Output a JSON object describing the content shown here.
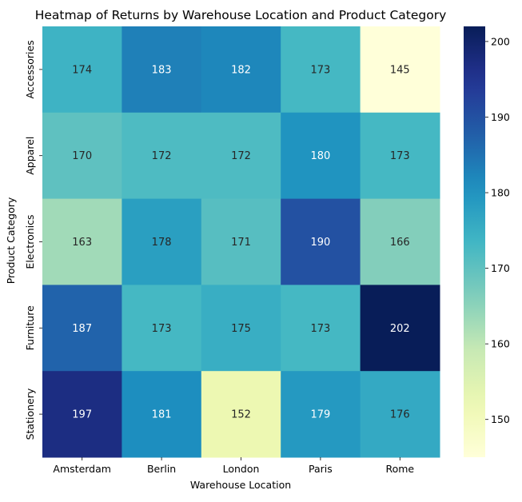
{
  "chart_data": {
    "type": "heatmap",
    "title": "Heatmap of Returns by Warehouse Location and Product Category",
    "xlabel": "Warehouse Location",
    "ylabel": "Product Category",
    "x_categories": [
      "Amsterdam",
      "Berlin",
      "London",
      "Paris",
      "Rome"
    ],
    "y_categories": [
      "Accessories",
      "Apparel",
      "Electronics",
      "Furniture",
      "Stationery"
    ],
    "values": [
      [
        174,
        183,
        182,
        173,
        145
      ],
      [
        170,
        172,
        172,
        180,
        173
      ],
      [
        163,
        178,
        171,
        190,
        166
      ],
      [
        187,
        173,
        175,
        173,
        202
      ],
      [
        197,
        181,
        152,
        179,
        176
      ]
    ],
    "colormap": "YlGnBu",
    "color_range": [
      145,
      202
    ],
    "colorbar_ticks": [
      150,
      160,
      170,
      180,
      190,
      200
    ]
  }
}
